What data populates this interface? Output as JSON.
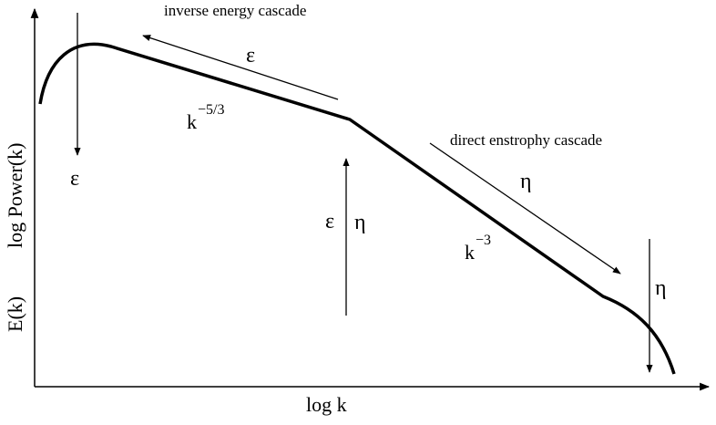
{
  "axes": {
    "x_label": "log k",
    "y_label_upper": "log Power(k)",
    "y_label_lower": "E(k)"
  },
  "annotations": {
    "inverse_cascade": "inverse energy cascade",
    "direct_cascade": "direct enstrophy cascade",
    "epsilon": "ε",
    "eta": "η",
    "k_base": "k",
    "exp_inverse": "−5/3",
    "exp_direct": "−3"
  }
}
